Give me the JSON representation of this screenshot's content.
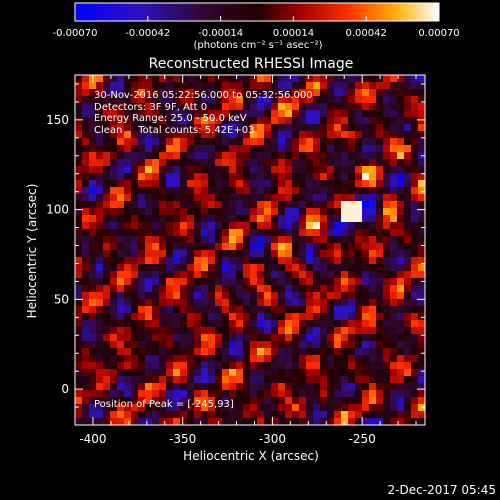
{
  "chart_data": {
    "type": "heatmap",
    "title": "Reconstructed RHESSI Image",
    "xlabel": "Heliocentric X (arcsec)",
    "ylabel": "Heliocentric Y (arcsec)",
    "xlim": [
      -410,
      -215
    ],
    "ylim": [
      -20,
      175
    ],
    "x_ticks": [
      -400,
      -350,
      -300,
      -250
    ],
    "y_ticks": [
      0,
      50,
      100,
      150
    ],
    "colorbar": {
      "ticks": [
        "-0.00070",
        "-0.00042",
        "-0.00014",
        "0.00014",
        "0.00042",
        "0.00070"
      ],
      "min": -0.0007,
      "max": 0.0007,
      "units": "(photons cm⁻² s⁻¹ asec⁻²)",
      "colors": [
        "#0000ff",
        "#2a1aa0",
        "#1a0a1a",
        "#800000",
        "#ff2000",
        "#ff9900",
        "#ffff80",
        "#ffffff"
      ]
    },
    "annotations": [
      "30-Nov-2016 05:22:56.000 to 05:32:56.000",
      "Detectors: 3F 9F, Att 0",
      "Energy Range: 25.0 - 50.0 keV",
      "Clean     Total counts: 5.42E+03"
    ],
    "peak_label": "Position of Peak = [-245,93]",
    "grid": false
  },
  "footer": {
    "date_stamp": "2-Dec-2017 05:45"
  }
}
